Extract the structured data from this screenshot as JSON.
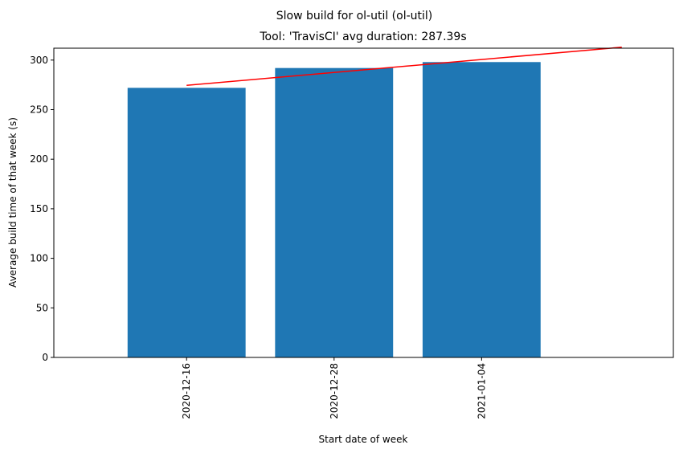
{
  "chart_data": {
    "type": "bar",
    "suptitle": "Slow build for ol-util (ol-util)",
    "title": "Tool: 'TravisCI' avg duration: 287.39s",
    "xlabel": "Start date of week",
    "ylabel": "Average build time of that week (s)",
    "categories": [
      "2020-12-16",
      "2020-12-28",
      "2021-01-04"
    ],
    "values": [
      272,
      292,
      298
    ],
    "bar_color": "#1f77b4",
    "trend_line": {
      "color": "#ff0000",
      "start": 274.5,
      "end": 313
    },
    "ylim": [
      0,
      312
    ],
    "yticks": [
      0,
      50,
      100,
      150,
      200,
      250,
      300
    ],
    "grid": false,
    "legend": "none"
  }
}
